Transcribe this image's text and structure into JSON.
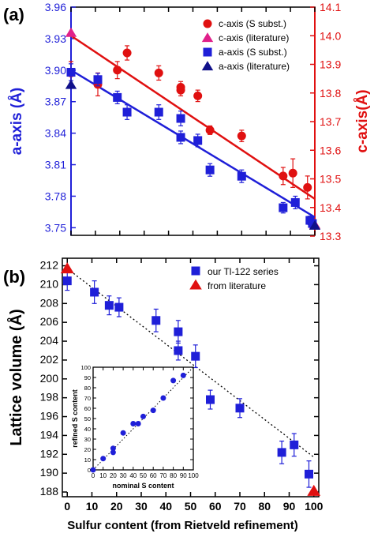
{
  "colors": {
    "blue": "#1f1fd8",
    "red": "#e01010",
    "magenta": "#e0208a",
    "navy": "#10108a",
    "black": "#000000"
  },
  "chart_data": [
    {
      "panel": "(a)",
      "type": "scatter",
      "xlim": [
        0,
        100
      ],
      "x_ticks": [
        "0",
        "10",
        "20",
        "30",
        "40",
        "50",
        "60",
        "70",
        "80",
        "90",
        "100"
      ],
      "left_axis": {
        "label": "a-axis (Å)",
        "ylim": [
          3.745,
          3.96
        ],
        "ticks": [
          "3.75",
          "3.78",
          "3.81",
          "3.84",
          "3.87",
          "3.90",
          "3.93",
          "3.96"
        ]
      },
      "right_axis": {
        "label": "c-axis(Å)",
        "ylim": [
          13.3,
          14.1
        ],
        "ticks": [
          "13.3",
          "13.4",
          "13.5",
          "13.6",
          "13.7",
          "13.8",
          "13.9",
          "14.0",
          "14.1"
        ]
      },
      "legend": {
        "position": "top-right",
        "entries": [
          "c-axis (S subst.)",
          "c-axis (literature)",
          "a-axis (S subst.)",
          "a-axis (literature)"
        ]
      },
      "series": [
        {
          "name": "c-axis (S subst.)",
          "axis": "right",
          "marker": "circle",
          "color": "#e01010",
          "x": [
            0,
            11,
            19,
            23,
            36,
            45,
            45,
            52,
            57,
            70,
            87,
            91,
            97
          ],
          "y": [
            13.87,
            13.83,
            13.88,
            13.94,
            13.87,
            13.82,
            13.81,
            13.79,
            13.67,
            13.65,
            13.51,
            13.52,
            13.47
          ],
          "err": [
            0.04,
            0.04,
            0.03,
            0.025,
            0.025,
            0.02,
            0.02,
            0.02,
            0.015,
            0.02,
            0.03,
            0.05,
            0.04
          ]
        },
        {
          "name": "c-axis (literature)",
          "axis": "right",
          "marker": "triangle",
          "color": "#e0208a",
          "x": [
            0,
            100
          ],
          "y": [
            14.01,
            13.34
          ],
          "err": [
            0,
            0
          ]
        },
        {
          "name": "a-axis (S subst.)",
          "axis": "left",
          "marker": "square",
          "color": "#1f1fd8",
          "x": [
            0,
            11,
            19,
            23,
            36,
            45,
            45,
            52,
            57,
            70,
            87,
            92,
            98,
            99
          ],
          "y": [
            3.898,
            3.891,
            3.874,
            3.86,
            3.86,
            3.854,
            3.836,
            3.833,
            3.805,
            3.799,
            3.769,
            3.774,
            3.757,
            3.754
          ],
          "err": [
            0.008,
            0.006,
            0.006,
            0.007,
            0.007,
            0.007,
            0.006,
            0.006,
            0.006,
            0.006,
            0.005,
            0.006,
            0.004,
            0.004
          ]
        },
        {
          "name": "a-axis (literature)",
          "axis": "left",
          "marker": "triangle",
          "color": "#10108a",
          "x": [
            0,
            100
          ],
          "y": [
            3.886,
            3.752
          ],
          "err": [
            0,
            0
          ]
        }
      ],
      "fit_lines": [
        {
          "axis": "right",
          "color": "#e01010",
          "x": [
            0,
            100
          ],
          "y": [
            14.0,
            13.43
          ]
        },
        {
          "axis": "left",
          "color": "#1f1fd8",
          "x": [
            0,
            100
          ],
          "y": [
            3.9,
            3.76
          ]
        }
      ]
    },
    {
      "panel": "(b)",
      "type": "scatter",
      "xlim": [
        -2,
        102
      ],
      "x_ticks": [
        "0",
        "10",
        "20",
        "30",
        "40",
        "50",
        "60",
        "70",
        "80",
        "90",
        "100"
      ],
      "xlabel": "Sulfur content (from Rietveld refinement)",
      "ylabel": "Lattice volume (Å)",
      "ylim": [
        187.5,
        212.8
      ],
      "y_ticks": [
        "188",
        "190",
        "192",
        "194",
        "196",
        "198",
        "200",
        "202",
        "204",
        "206",
        "208",
        "210",
        "212"
      ],
      "legend": {
        "position": "top-right",
        "entries": [
          "our Tl-122 series",
          "from literature"
        ]
      },
      "series": [
        {
          "name": "our Tl-122 series",
          "marker": "square",
          "color": "#1f1fd8",
          "x": [
            0,
            11,
            17,
            21,
            36,
            45,
            45,
            52,
            58,
            70,
            87,
            92,
            98
          ],
          "y": [
            210.4,
            209.2,
            207.8,
            207.6,
            206.2,
            205.0,
            203.0,
            202.4,
            197.8,
            196.9,
            192.2,
            193.0,
            189.9
          ],
          "err": [
            1.0,
            1.2,
            1.0,
            1.0,
            1.2,
            1.2,
            1.0,
            1.2,
            1.0,
            1.0,
            1.2,
            1.2,
            1.4
          ]
        },
        {
          "name": "from literature",
          "marker": "triangle",
          "color": "#e01010",
          "x": [
            0,
            100
          ],
          "y": [
            211.7,
            188.1
          ],
          "err": [
            0,
            0
          ]
        }
      ],
      "fit_lines": [
        {
          "style": "dotted",
          "color": "#000000",
          "x": [
            0,
            100
          ],
          "y": [
            211.7,
            191.7
          ]
        }
      ],
      "inset": {
        "type": "scatter",
        "xlabel": "nominal S content",
        "ylabel": "refined S content",
        "xlim": [
          0,
          100
        ],
        "ylim": [
          0,
          100
        ],
        "x_ticks": [
          "0",
          "10",
          "20",
          "30",
          "40",
          "50",
          "60",
          "70",
          "80",
          "90",
          "100"
        ],
        "y_ticks": [
          "0",
          "10",
          "20",
          "30",
          "40",
          "50",
          "60",
          "70",
          "80",
          "90",
          "100"
        ],
        "series": [
          {
            "marker": "circle",
            "color": "#1f1fd8",
            "x": [
              0,
              10,
              20,
              20,
              30,
              40,
              45,
              50,
              60,
              70,
              80,
              90
            ],
            "y": [
              0,
              11,
              17,
              21,
              36,
              45,
              45,
              52,
              58,
              70,
              87,
              92
            ]
          }
        ],
        "fit_lines": [
          {
            "style": "dotted",
            "color": "#000000",
            "x": [
              0,
              100
            ],
            "y": [
              0,
              100
            ]
          }
        ]
      }
    }
  ]
}
